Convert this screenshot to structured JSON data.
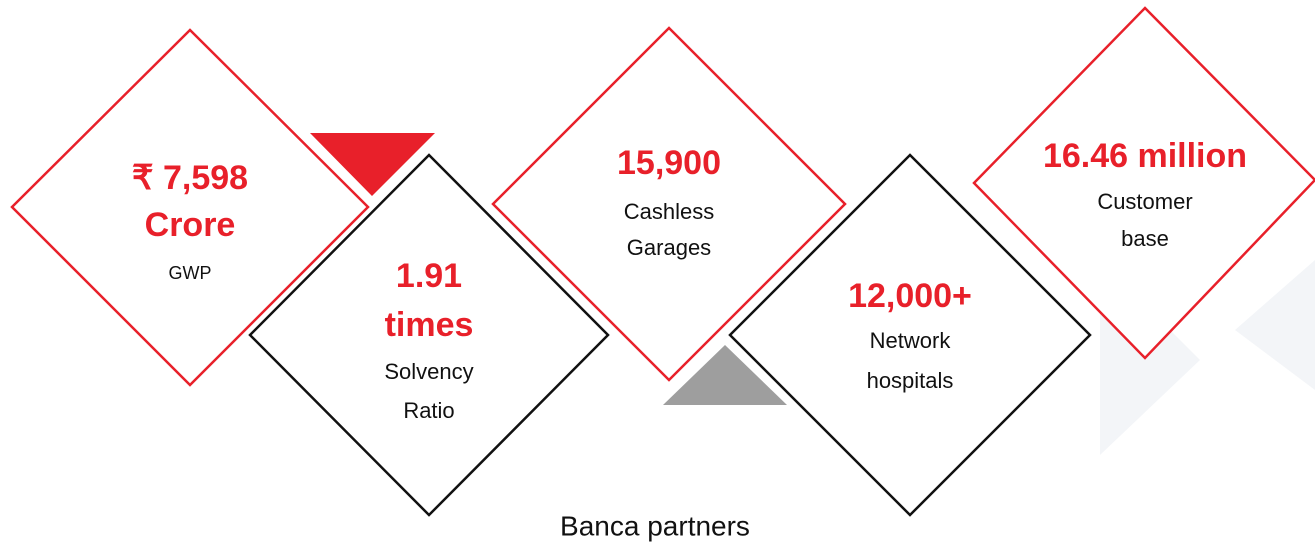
{
  "stats": [
    {
      "value": [
        "₹ 7,598",
        "Crore"
      ],
      "label": [
        "GWP"
      ]
    },
    {
      "value": [
        "1.91",
        "times"
      ],
      "label": [
        "Solvency",
        "Ratio"
      ]
    },
    {
      "value": [
        "15,900"
      ],
      "label": [
        "Cashless",
        "Garages"
      ]
    },
    {
      "value": [
        "12,000+"
      ],
      "label": [
        "Network",
        "hospitals"
      ]
    },
    {
      "value": [
        "16.46 million"
      ],
      "label": [
        "Customer",
        "base"
      ]
    }
  ],
  "caption": "Banca partners"
}
